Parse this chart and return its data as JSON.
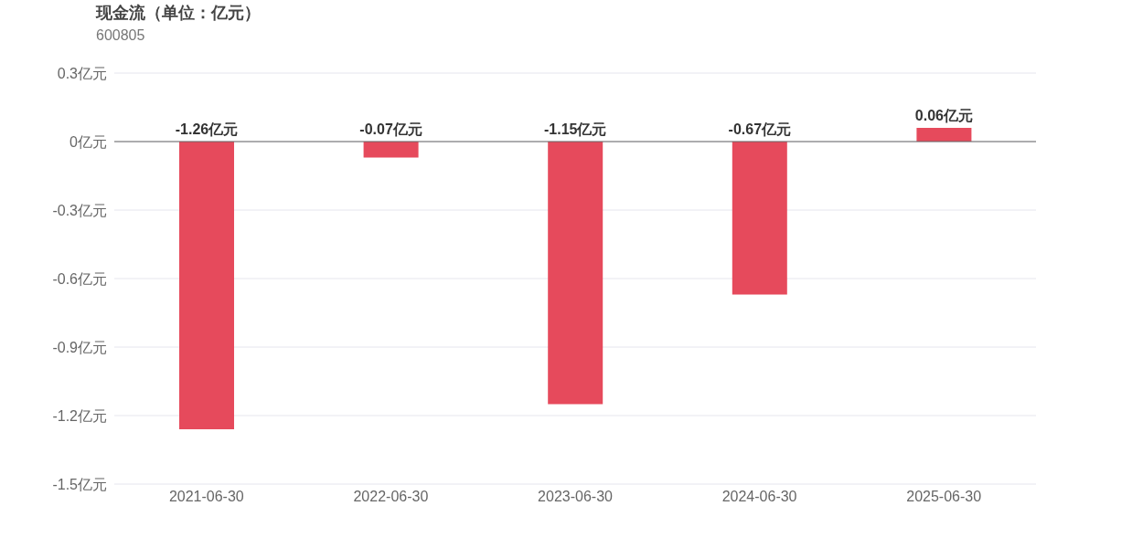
{
  "chart_data": {
    "type": "bar",
    "title": "现金流（单位：亿元）",
    "subtitle": "600805",
    "categories": [
      "2021-06-30",
      "2022-06-30",
      "2023-06-30",
      "2024-06-30",
      "2025-06-30"
    ],
    "values": [
      -1.26,
      -0.07,
      -1.15,
      -0.67,
      0.06
    ],
    "value_labels": [
      "-1.26亿元",
      "-0.07亿元",
      "-1.15亿元",
      "-0.67亿元",
      "0.06亿元"
    ],
    "color": "#e64a5c",
    "ylim": [
      -1.5,
      0.3
    ],
    "yticks": [
      {
        "value": 0.3,
        "label": "0.3亿元"
      },
      {
        "value": 0,
        "label": "0亿元"
      },
      {
        "value": -0.3,
        "label": "-0.3亿元"
      },
      {
        "value": -0.6,
        "label": "-0.6亿元"
      },
      {
        "value": -0.9,
        "label": "-0.9亿元"
      },
      {
        "value": -1.2,
        "label": "-1.2亿元"
      },
      {
        "value": -1.5,
        "label": "-1.5亿元"
      }
    ],
    "grid": "y"
  }
}
